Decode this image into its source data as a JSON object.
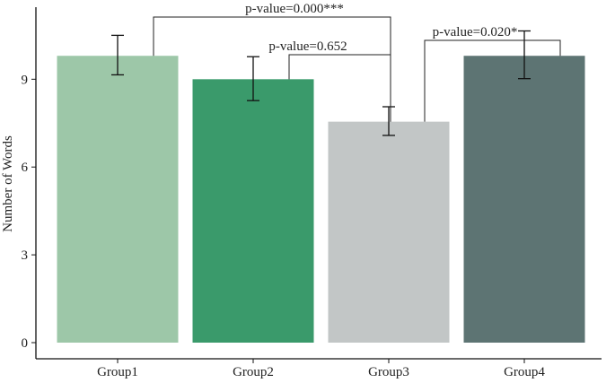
{
  "chart_data": {
    "type": "bar",
    "title": "",
    "xlabel": "",
    "ylabel": "Number of Words",
    "categories": [
      "Group1",
      "Group2",
      "Group3",
      "Group4"
    ],
    "values": [
      9.8,
      9.0,
      7.55,
      9.8
    ],
    "errors": [
      {
        "low": 9.15,
        "high": 10.5
      },
      {
        "low": 8.27,
        "high": 9.77
      },
      {
        "low": 7.08,
        "high": 8.06
      },
      {
        "low": 9.02,
        "high": 10.65
      }
    ],
    "colors": [
      "#9dc7a8",
      "#3a9a6b",
      "#c2c6c6",
      "#5d7473"
    ],
    "ylim": [
      0,
      11.3
    ],
    "yticks": [
      "0",
      "3",
      "6",
      "9"
    ],
    "grid": false,
    "comparisons": [
      {
        "label": "p-value=0.000***",
        "from": "Group1",
        "to": "Group3"
      },
      {
        "label": "p-value=0.652",
        "from": "Group2",
        "to": "Group3"
      },
      {
        "label": "p-value=0.020*",
        "from": "Group3",
        "to": "Group4"
      }
    ]
  }
}
